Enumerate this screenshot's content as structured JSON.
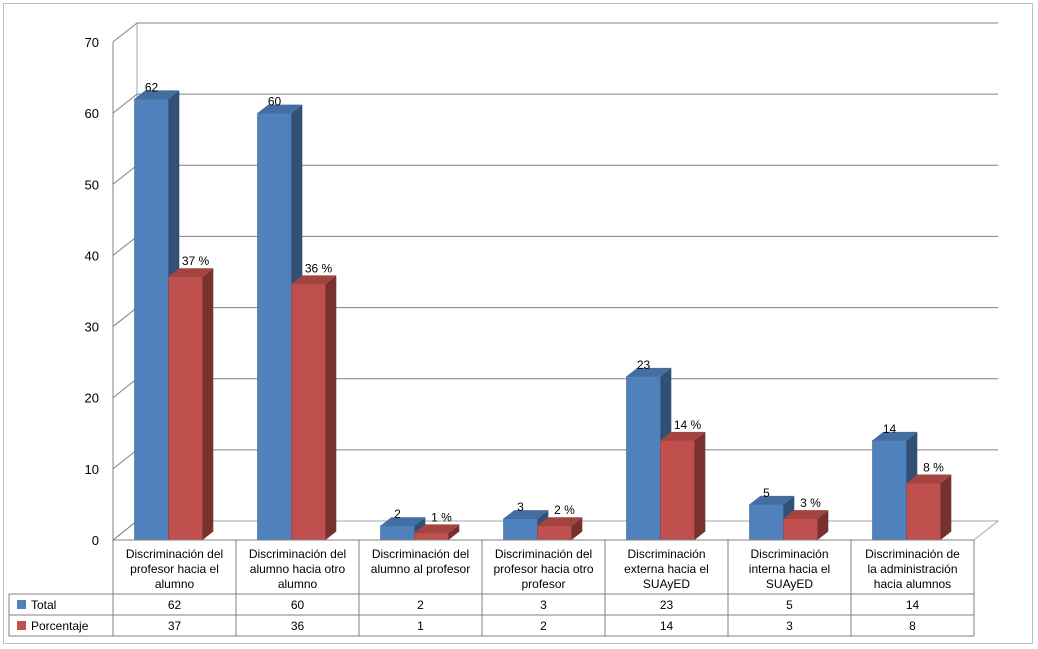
{
  "chart_data": {
    "type": "bar",
    "categories": [
      [
        "Discriminación del",
        "profesor hacia el",
        "alumno"
      ],
      [
        "Discriminación del",
        "alumno hacia otro",
        "alumno"
      ],
      [
        "Discriminación del",
        "alumno al profesor"
      ],
      [
        "Discriminación del",
        "profesor hacia otro",
        "profesor"
      ],
      [
        "Discriminación",
        "externa hacia el",
        "SUAyED"
      ],
      [
        "Discriminación",
        "interna hacia el",
        "SUAyED"
      ],
      [
        "Discriminación de",
        "la administración",
        "hacia alumnos"
      ]
    ],
    "series": [
      {
        "name": "Total",
        "color": "#4f81bd",
        "values": [
          62,
          60,
          2,
          3,
          23,
          5,
          14
        ],
        "labels": [
          "62",
          "60",
          "2",
          "3",
          "23",
          "5",
          "14"
        ]
      },
      {
        "name": "Porcentaje",
        "color": "#c0504d",
        "values": [
          37,
          36,
          1,
          2,
          14,
          3,
          8
        ],
        "labels": [
          "37 %",
          "36 %",
          "1 %",
          "2 %",
          "14 %",
          "3 %",
          "8 %"
        ]
      }
    ],
    "ylim": [
      0,
      70
    ],
    "yticks": [
      0,
      10,
      20,
      30,
      40,
      50,
      60,
      70
    ],
    "grid": true,
    "three_d": true,
    "legend": "data-table-bottom"
  }
}
